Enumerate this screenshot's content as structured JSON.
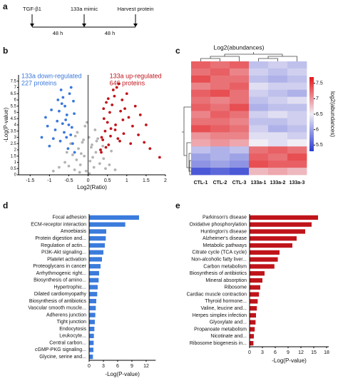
{
  "panel_labels": [
    "a",
    "b",
    "c",
    "d",
    "e"
  ],
  "timeline": {
    "events": [
      "TGF-β1",
      "133a mimic",
      "Harvest protein"
    ],
    "intervals": [
      "48 h",
      "48 h"
    ]
  },
  "chart_data": [
    {
      "type": "scatter",
      "x_label": "Log2(Ratio)",
      "y_label": "-Log(P-value)",
      "annotations": [
        "133a down-regulated",
        "227 proteins",
        "133a up-regulated",
        "646 proteins"
      ],
      "xlim": [
        -1.8,
        2.0
      ],
      "xticks": [
        -1.5,
        -1,
        -0.5,
        0,
        0.5,
        1,
        1.5,
        2
      ],
      "ylim": [
        0,
        8
      ],
      "yticks": [
        0,
        0.5,
        1,
        1.5,
        2,
        2.5,
        3,
        3.5,
        4,
        4.5,
        5,
        5.5,
        6,
        6.5,
        7,
        7.5
      ],
      "series": [
        {
          "color": "#b3b3b3",
          "x": [
            -0.35,
            -0.3,
            -0.25,
            -0.2,
            -0.15,
            -0.1,
            -0.05,
            0.02,
            0.05,
            0.1,
            0.15,
            0.2,
            0.25,
            0.3,
            -0.4,
            -0.5,
            0.4,
            0.45,
            -0.6,
            0.55,
            -0.28,
            -0.12,
            0.08,
            0.18,
            0.33,
            -0.22,
            -0.08,
            0.12,
            -0.45,
            0.6,
            -0.75,
            0.7,
            -0.9,
            -0.18,
            0.22,
            -0.03,
            0.03,
            -0.33,
            0.38,
            -0.55
          ],
          "y": [
            0.4,
            1.2,
            2.1,
            0.8,
            2.6,
            1.5,
            0.3,
            3.0,
            1.1,
            2.4,
            0.6,
            1.8,
            2.9,
            0.9,
            1.6,
            0.7,
            1.3,
            0.5,
            1.0,
            0.8,
            3.4,
            2.8,
            2.2,
            3.6,
            2.0,
            0.2,
            3.9,
            1.4,
            2.5,
            1.9,
            0.6,
            0.4,
            0.3,
            1.7,
            2.7,
            4.2,
            0.1,
            3.1,
            2.3,
            1.8
          ]
        },
        {
          "color": "#3a78dc",
          "x": [
            -0.35,
            -0.4,
            -0.45,
            -0.5,
            -0.55,
            -0.6,
            -0.65,
            -0.7,
            -0.75,
            -0.8,
            -0.85,
            -0.9,
            -1.0,
            -1.1,
            -1.2,
            -0.38,
            -0.42,
            -0.48,
            -0.52,
            -0.58,
            -0.62,
            -0.68,
            -0.72,
            -0.78,
            -0.95,
            -1.05,
            -0.36,
            -0.44,
            -0.56,
            -0.66
          ],
          "y": [
            1.8,
            2.5,
            3.2,
            4.0,
            4.8,
            5.5,
            6.2,
            6.8,
            5.1,
            4.3,
            3.6,
            2.9,
            2.3,
            4.6,
            3.0,
            5.9,
            3.8,
            6.5,
            2.1,
            4.4,
            3.4,
            5.7,
            2.7,
            6.0,
            5.2,
            3.9,
            4.9,
            7.0,
            3.0,
            4.1
          ]
        },
        {
          "color": "#c0141b",
          "x": [
            0.32,
            0.38,
            0.44,
            0.5,
            0.56,
            0.62,
            0.68,
            0.74,
            0.8,
            0.88,
            0.95,
            1.05,
            1.15,
            1.3,
            1.45,
            1.6,
            1.85,
            0.35,
            0.41,
            0.47,
            0.53,
            0.59,
            0.65,
            0.71,
            0.77,
            0.84,
            0.92,
            1.0,
            1.1,
            1.22,
            1.35,
            0.34,
            0.4,
            0.46,
            0.52,
            0.58,
            0.7,
            0.82,
            1.5,
            0.9
          ],
          "y": [
            2.0,
            2.8,
            3.5,
            4.2,
            5.0,
            5.6,
            6.3,
            7.0,
            7.3,
            6.0,
            5.3,
            4.6,
            3.9,
            3.2,
            2.6,
            2.1,
            1.4,
            3.0,
            4.5,
            5.8,
            2.4,
            3.7,
            6.8,
            4.0,
            2.9,
            5.1,
            3.3,
            6.5,
            2.5,
            5.5,
            4.8,
            1.8,
            5.3,
            2.2,
            6.1,
            3.1,
            3.6,
            2.7,
            4.0,
            4.4
          ]
        }
      ]
    },
    {
      "type": "heatmap",
      "title": "Log2(abundances)",
      "colorbar_label": "log2(abundances)",
      "columns": [
        "CTL-1",
        "CTL-2",
        "CTL-3",
        "133a-1",
        "133a-2",
        "133a-3"
      ],
      "clim": [
        5.3,
        7.7
      ],
      "cticks": [
        5.5,
        6,
        6.5,
        7,
        7.5
      ],
      "colormap": [
        "#2a3bd1",
        "#f1edf5",
        "#e41a1c"
      ],
      "values": [
        [
          7.3,
          7.2,
          7.3,
          6.2,
          6.3,
          6.2
        ],
        [
          7.2,
          7.3,
          7.1,
          6.3,
          6.2,
          6.3
        ],
        [
          7.4,
          7.2,
          7.2,
          6.2,
          6.1,
          6.2
        ],
        [
          7.1,
          7.2,
          7.3,
          6.4,
          6.3,
          6.3
        ],
        [
          7.3,
          7.4,
          7.2,
          6.3,
          6.2,
          6.1
        ],
        [
          7.2,
          7.1,
          7.2,
          6.2,
          6.3,
          6.4
        ],
        [
          7.3,
          7.2,
          7.4,
          6.1,
          6.2,
          6.2
        ],
        [
          7.1,
          7.3,
          7.2,
          6.3,
          6.4,
          6.3
        ],
        [
          7.2,
          7.2,
          7.1,
          6.2,
          6.2,
          6.3
        ],
        [
          7.4,
          7.3,
          7.2,
          6.3,
          6.1,
          6.2
        ],
        [
          7.0,
          7.1,
          7.1,
          6.4,
          6.4,
          6.3
        ],
        [
          6.9,
          7.0,
          6.9,
          6.5,
          6.4,
          6.5
        ],
        [
          6.2,
          6.1,
          6.2,
          7.2,
          7.3,
          7.2
        ],
        [
          6.0,
          6.1,
          6.0,
          7.3,
          7.2,
          7.4
        ],
        [
          5.9,
          6.0,
          5.9,
          7.4,
          7.3,
          7.3
        ],
        [
          5.5,
          5.6,
          5.5,
          6.8,
          6.9,
          6.8
        ]
      ]
    },
    {
      "type": "bar",
      "orientation": "horizontal",
      "x_label": "-Log(P-value)",
      "color": "#3b7bdc",
      "xlim": [
        0,
        14
      ],
      "xticks": [
        0,
        3,
        6,
        9,
        12
      ],
      "categories": [
        "Focal adhesion",
        "ECM-receptor interaction",
        "Amoebiasis",
        "Protein digestion and...",
        "Regulation of actin...",
        "PI3K-Akt signaling...",
        "Platelet activation",
        "Proteoglycans in cancer",
        "Arrhythmogenic right...",
        "Biosynthesis of amino...",
        "Hypertrophic...",
        "Dilated cardiomyopathy",
        "Biosynthesis of antibiotics",
        "Vascular smooth muscle...",
        "Adherens junction",
        "Tight junction",
        "Endocytosis",
        "Leukocyte...",
        "Central carbon...",
        "cGMP-PKG signaling...",
        "Glycine, serine and..."
      ],
      "values": [
        10.5,
        7.6,
        3.6,
        3.5,
        3.3,
        3.0,
        2.7,
        2.4,
        2.1,
        2.0,
        1.8,
        1.7,
        1.5,
        1.4,
        1.3,
        1.2,
        1.1,
        1.0,
        0.95,
        0.9,
        0.8
      ]
    },
    {
      "type": "bar",
      "orientation": "horizontal",
      "x_label": "-Log(P-value)",
      "color": "#c0141b",
      "xlim": [
        0,
        18.5
      ],
      "xticks": [
        0,
        3,
        6,
        9,
        12,
        15,
        18
      ],
      "categories": [
        "Parkinson's disease",
        "Oxidative phosphorylation",
        "Huntington's disease",
        "Alzheimer's disease",
        "Metabolic pathways",
        "Citrate cycle (TCA cycle)",
        "Non-alcoholic fatty liver...",
        "Carbon metabolism",
        "Biosynthesis of antibiotics",
        "Mineral absorption",
        "Ribosome",
        "Cardiac muscle contraction",
        "Thyroid hormone...",
        "Valine, leucine and...",
        "Herpes simplex infection",
        "Glyoxylate and...",
        "Propanoate metabolism",
        "Nicotinate and...",
        "Ribosome biogenesis in..."
      ],
      "values": [
        16,
        14.5,
        13,
        11,
        10,
        7,
        6.6,
        5.8,
        3.5,
        3,
        2.5,
        2.2,
        1.9,
        1.7,
        1.5,
        1.4,
        1.2,
        1.0,
        0.9
      ]
    }
  ]
}
